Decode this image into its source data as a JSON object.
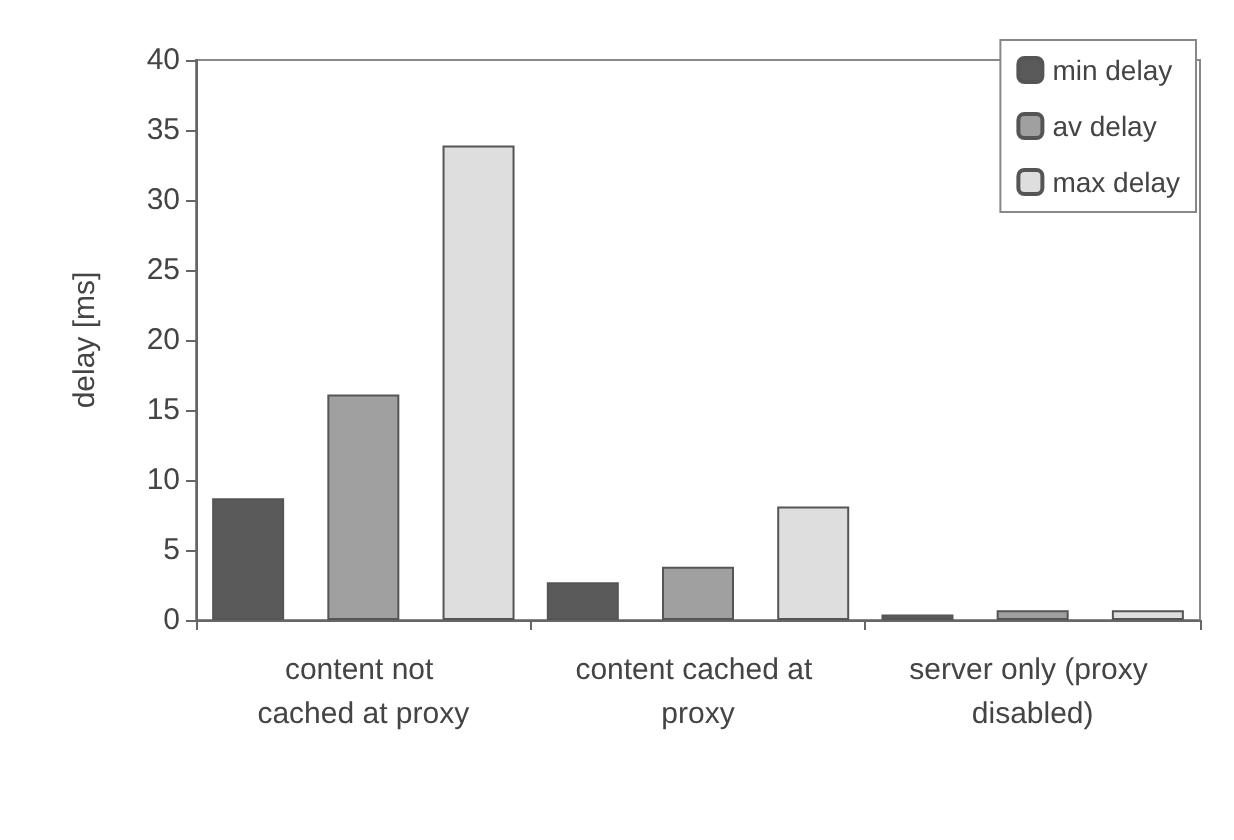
{
  "chart_data": {
    "type": "bar",
    "ylabel": "delay [ms]",
    "categories": [
      "content not cached at proxy",
      "content cached at proxy",
      "server only (proxy disabled)"
    ],
    "series": [
      {
        "name": "min delay",
        "color": "#5a5a5a",
        "values": [
          8.7,
          2.7,
          0.4
        ]
      },
      {
        "name": "av delay",
        "color": "#a0a0a0",
        "values": [
          16.1,
          3.8,
          0.7
        ]
      },
      {
        "name": "max delay",
        "color": "#dedede",
        "values": [
          33.9,
          8.1,
          0.7
        ]
      }
    ],
    "ylim": [
      0,
      40
    ],
    "yticks": [
      0,
      5,
      10,
      15,
      20,
      25,
      30,
      35,
      40
    ],
    "grid": false,
    "legend": "top right"
  }
}
